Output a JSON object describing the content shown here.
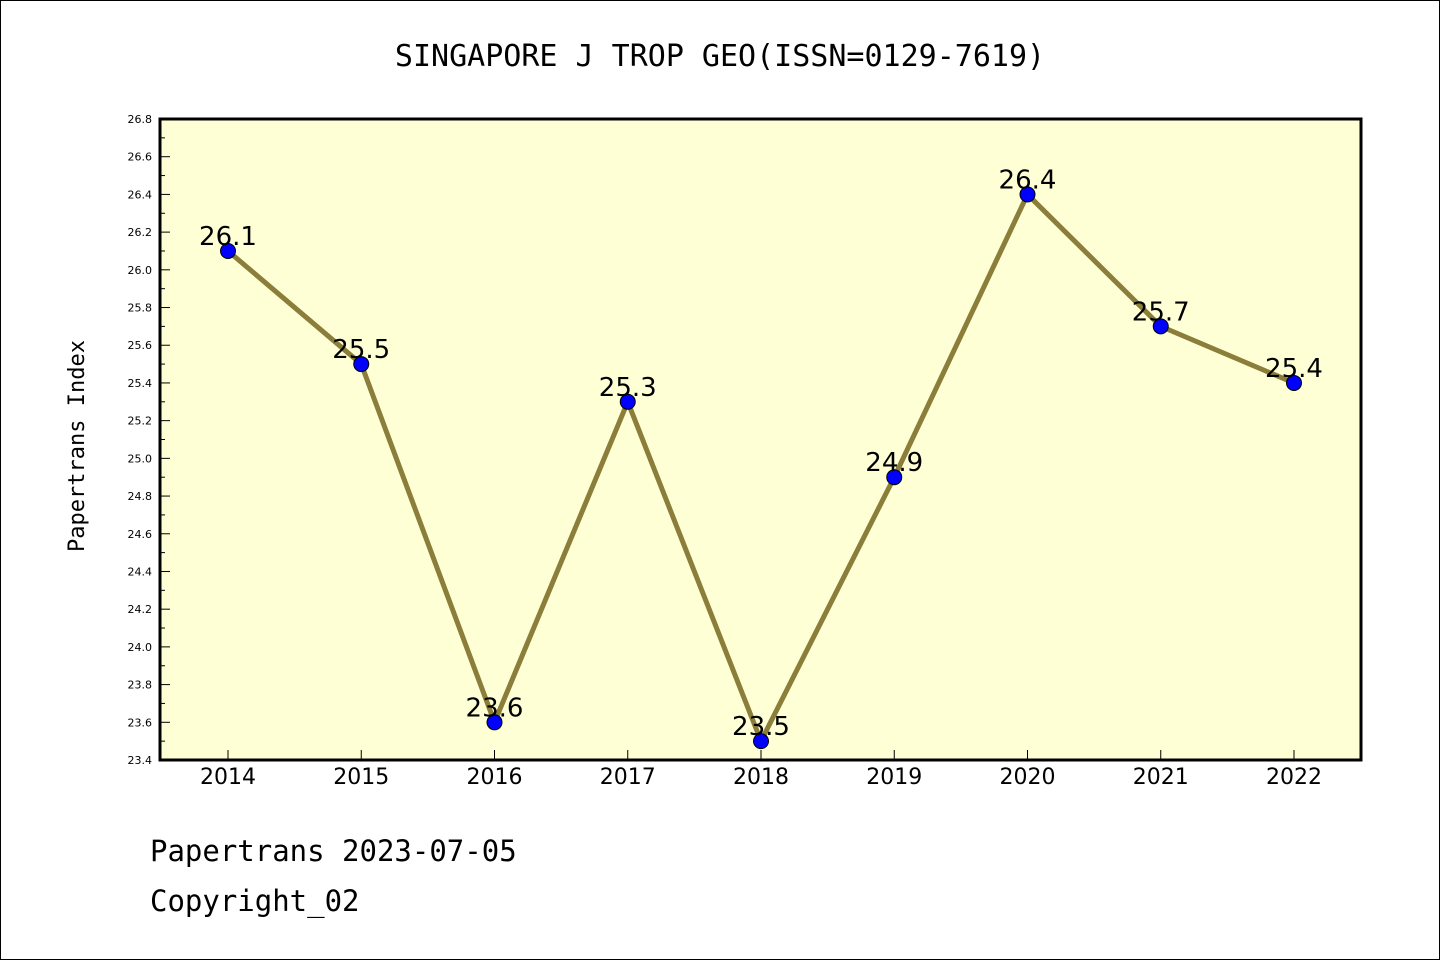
{
  "chart_data": {
    "type": "line",
    "title": "SINGAPORE J TROP GEO(ISSN=0129-7619)",
    "ylabel": "Papertrans Index",
    "xlabel": "",
    "categories": [
      "2014",
      "2015",
      "2016",
      "2017",
      "2018",
      "2019",
      "2020",
      "2021",
      "2022"
    ],
    "values": [
      26.1,
      25.5,
      23.6,
      25.3,
      23.5,
      24.9,
      26.4,
      25.7,
      25.4
    ],
    "value_labels": [
      "26.1",
      "25.5",
      "23.6",
      "25.3",
      "23.5",
      "24.9",
      "26.4",
      "25.7",
      "25.4"
    ],
    "ylim": [
      23.4,
      26.8
    ],
    "yticks": [
      "23.4",
      "23.6",
      "23.8",
      "24.0",
      "24.2",
      "24.4",
      "24.6",
      "24.8",
      "25.0",
      "25.2",
      "25.4",
      "25.6",
      "25.8",
      "26.0",
      "26.2",
      "26.4",
      "26.6",
      "26.8"
    ],
    "grid": false,
    "legend": "none",
    "colors": {
      "plot_bg": "#ffffd5",
      "line": "#8b7d3a",
      "marker": "#0000ff"
    }
  },
  "footer": {
    "line1": "Papertrans 2023-07-05",
    "line2": "Copyright_02"
  }
}
